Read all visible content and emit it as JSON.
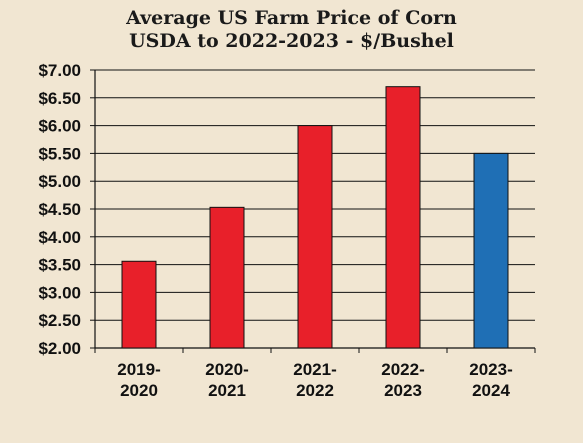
{
  "chart_data": {
    "type": "bar",
    "title": "Average US Farm Price of Corn",
    "subtitle": "USDA to 2022-2023 - $/Bushel",
    "categories": [
      [
        "2019-",
        "2020"
      ],
      [
        "2020-",
        "2021"
      ],
      [
        "2021-",
        "2022"
      ],
      [
        "2022-",
        "2023"
      ],
      [
        "2023-",
        "2024"
      ]
    ],
    "values": [
      3.56,
      4.53,
      6.0,
      6.7,
      5.5
    ],
    "bar_colors": [
      "#e8202a",
      "#e8202a",
      "#e8202a",
      "#e8202a",
      "#1f6fb5"
    ],
    "y_ticks": [
      "$2.00",
      "$2.50",
      "$3.00",
      "$3.50",
      "$4.00",
      "$4.50",
      "$5.00",
      "$5.50",
      "$6.00",
      "$6.50",
      "$7.00"
    ],
    "ylim": [
      2.0,
      7.0
    ],
    "grid": true,
    "xlabel": "",
    "ylabel": ""
  }
}
